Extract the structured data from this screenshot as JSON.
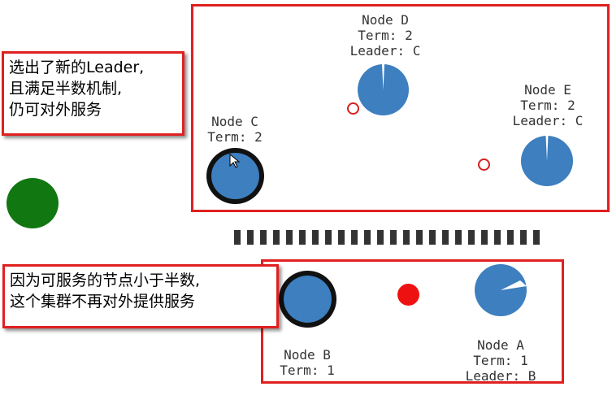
{
  "top_note": {
    "text": "选出了新的Leader,\n且满足半数机制,\n仍可对外服务"
  },
  "bottom_note": {
    "text": "因为可服务的节点小于半数,\n这个集群不再对外提供服务"
  },
  "nodes": {
    "a": {
      "name": "Node A",
      "term": "Term: 1",
      "leader": "Leader: B"
    },
    "b": {
      "name": "Node B",
      "term": "Term: 1"
    },
    "c": {
      "name": "Node C",
      "term": "Term: 2"
    },
    "d": {
      "name": "Node D",
      "term": "Term: 2",
      "leader": "Leader: C"
    },
    "e": {
      "name": "Node E",
      "term": "Term: 2",
      "leader": "Leader: C"
    }
  },
  "colors": {
    "node": "#3d7fbf",
    "frame": "#e02020",
    "message": "#ee1111",
    "client": "#117711"
  }
}
